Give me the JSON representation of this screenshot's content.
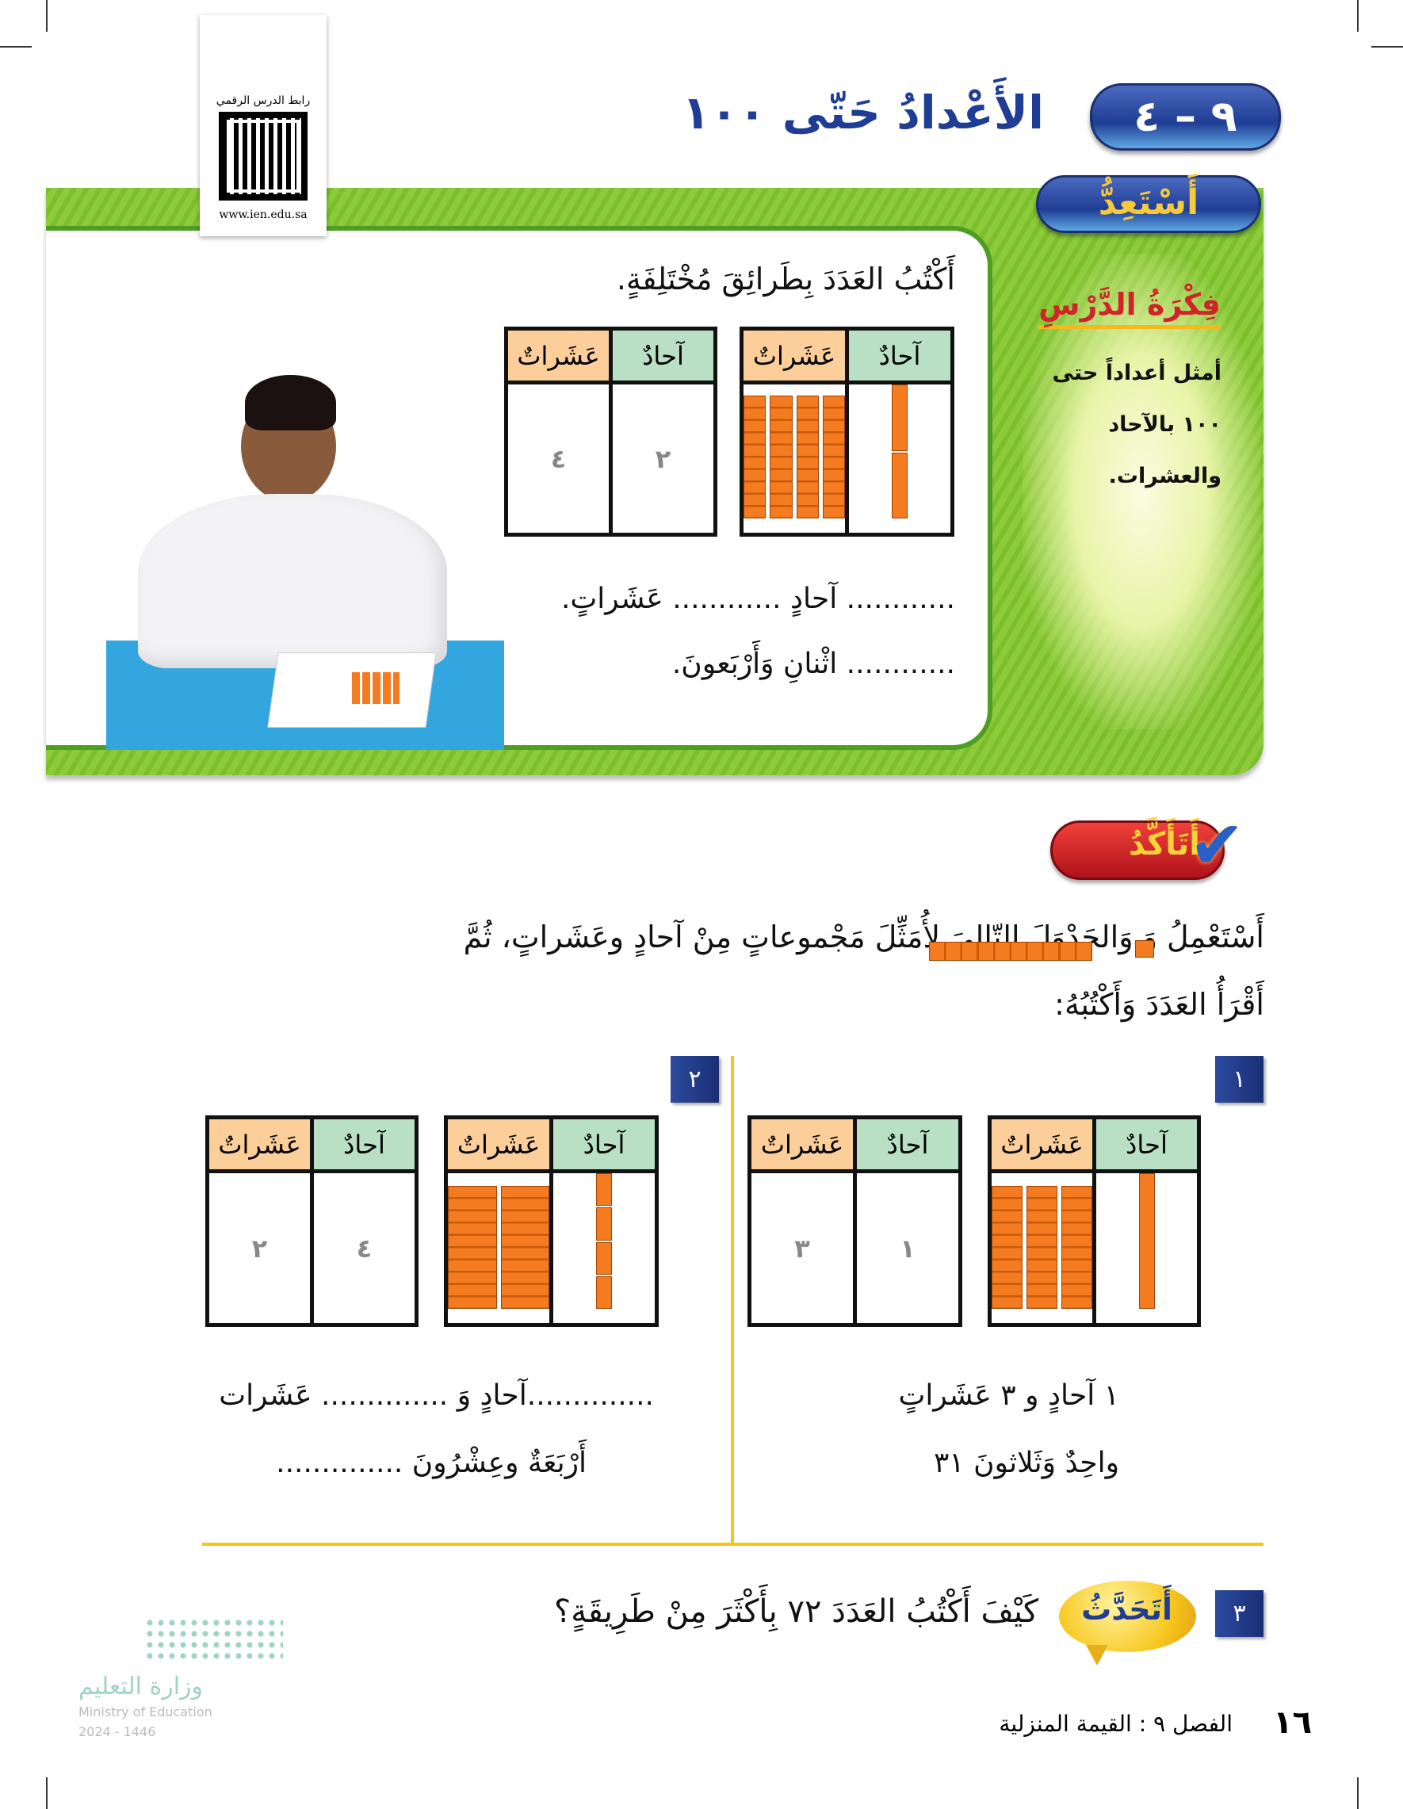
{
  "header": {
    "lesson_number": "٩ – ٤",
    "title": "الأَعْدادُ حَتّى ١٠٠"
  },
  "qr": {
    "label": "رابط الدرس الرقمي",
    "url": "www.ien.edu.sa"
  },
  "prepare": {
    "badge": "أَسْتَعِدُّ",
    "instruction": "أَكْتُبُ العَدَدَ بِطَرائِقَ مُخْتَلِفَةٍ.",
    "table_blocks": {
      "ones_label": "آحادٌ",
      "tens_label": "عَشَراتٌ",
      "tens": 4,
      "ones": 2
    },
    "table_digits": {
      "ones_label": "آحادٌ",
      "tens_label": "عَشَراتٌ",
      "ones": "٢",
      "tens": "٤"
    },
    "line1": "............ آحادٍ ............ عَشَراتٍ.",
    "line2": "............   اثْنانِ وَأَرْبَعونَ."
  },
  "lesson_idea": {
    "title": "فِكْرَةُ الدَّرْسِ",
    "lines": [
      "أمثل أعداداً حتى",
      "١٠٠ بالآحاد",
      "والعشرات."
    ]
  },
  "check": {
    "badge": "أَتَأَكَّدُ",
    "instruction_1": "أَسْتَعْمِلُ      وَ                  وَالجَدْوَلَ التّالِيَ لِأُمَثِّلَ مَجْموعاتٍ مِنْ آحادٍ وعَشَراتٍ، ثُمَّ",
    "instruction_2": "أَقْرَأُ العَدَدَ وَأَكْتُبُهُ:"
  },
  "exercises": [
    {
      "number": "١",
      "blocks": {
        "ones_label": "آحادٌ",
        "tens_label": "عَشَراتٌ",
        "tens": 3,
        "ones": 1
      },
      "digits": {
        "ones_label": "آحادٌ",
        "tens_label": "عَشَراتٌ",
        "ones": "١",
        "tens": "٣"
      },
      "line1": "١ آحادٍ و ٣ عَشَراتٍ",
      "line2": "واحِدٌ وَثَلاثونَ   ٣١"
    },
    {
      "number": "٢",
      "blocks": {
        "ones_label": "آحادٌ",
        "tens_label": "عَشَراتٌ",
        "tens": 2,
        "ones": 4
      },
      "digits": {
        "ones_label": "آحادٌ",
        "tens_label": "عَشَراتٌ",
        "ones": "٤",
        "tens": "٢"
      },
      "line1": "..............آحادٍ وَ  .............. عَشَرات",
      "line2": "أَرْبَعَةٌ وعِشْرُونَ  .............."
    }
  ],
  "talk": {
    "number": "٣",
    "badge": "أَتَحَدَّثُ",
    "question": "كَيْفَ أَكْتُبُ العَدَدَ ٧٢ بِأَكْثَرَ مِنْ طَرِيقَةٍ؟"
  },
  "footer": {
    "page": "١٦",
    "chapter": "الفصل ٩ : القيمة المنزلية"
  },
  "ministry": {
    "arabic": "وزارة التعليم",
    "english": "Ministry of Education",
    "year": "2024 - 1446"
  },
  "colors": {
    "blue": "#1f3d94",
    "green": "#7cbf2e",
    "orange": "#f47b20",
    "yellow": "#f5c518",
    "red": "#d2232a"
  }
}
